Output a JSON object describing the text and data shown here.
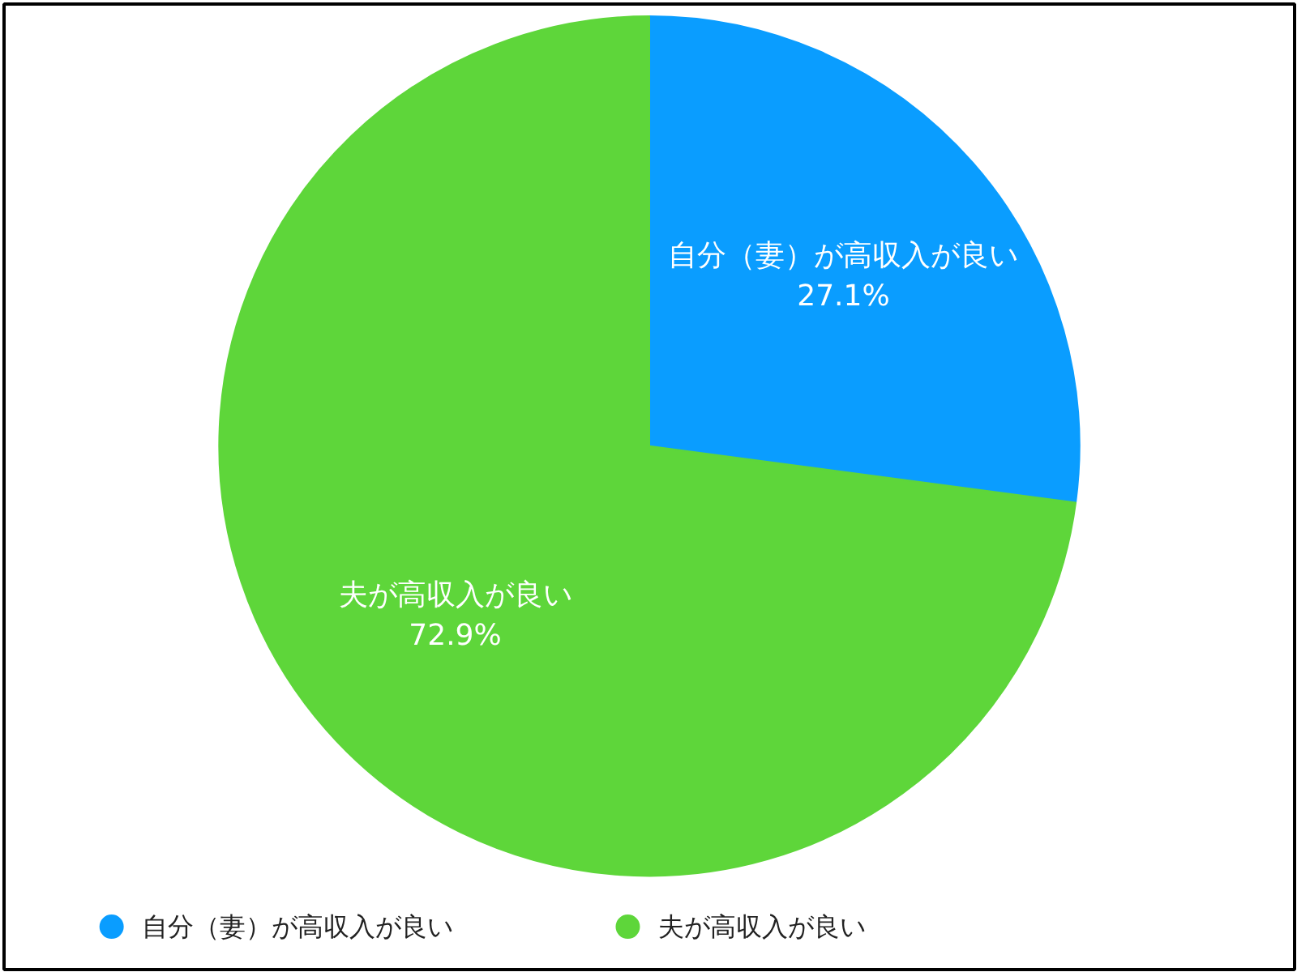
{
  "chart_data": {
    "type": "pie",
    "categories": [
      "自分（妻）が高収入が良い",
      "夫が高収入が良い"
    ],
    "values": [
      27.1,
      72.9
    ],
    "colors": [
      "#0a9dff",
      "#5ed63a"
    ],
    "value_labels": [
      "27.1%",
      "72.9%"
    ],
    "legend": "bottom"
  }
}
